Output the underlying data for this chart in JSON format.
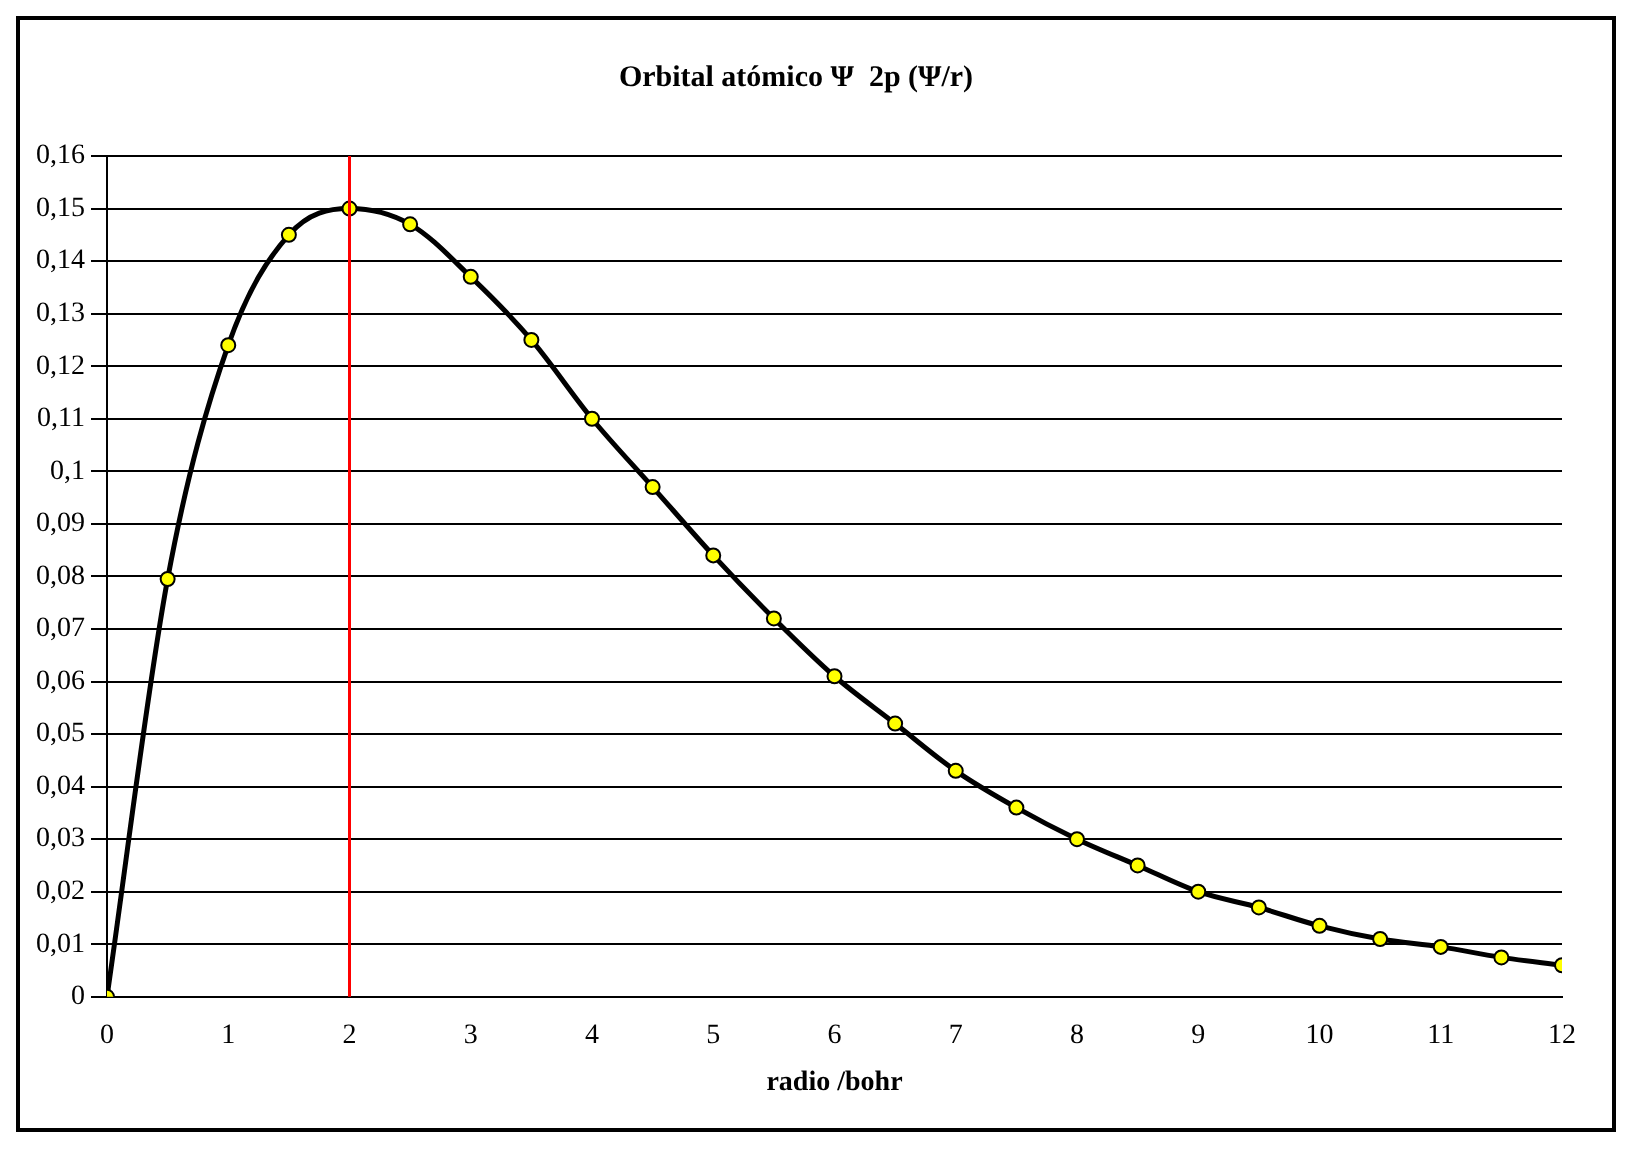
{
  "chart_data": {
    "type": "line",
    "title": "Orbital atómico Ψ  2p (Ψ/r)",
    "xlabel": "radio /bohr",
    "x": [
      0,
      0.5,
      1,
      1.5,
      2,
      2.5,
      3,
      3.5,
      4,
      4.5,
      5,
      5.5,
      6,
      6.5,
      7,
      7.5,
      8,
      8.5,
      9,
      9.5,
      10,
      10.5,
      11,
      11.5,
      12
    ],
    "series": [
      {
        "color": "#000000",
        "values": [
          0,
          0.0795,
          0.124,
          0.145,
          0.15,
          0.147,
          0.137,
          0.125,
          0.11,
          0.097,
          0.084,
          0.072,
          0.061,
          0.052,
          0.043,
          0.036,
          0.03,
          0.025,
          0.02,
          0.017,
          0.0135,
          0.011,
          0.0095,
          0.0075,
          0.006
        ]
      }
    ],
    "xlim": [
      0,
      12
    ],
    "xticks": [
      0,
      1,
      2,
      3,
      4,
      5,
      6,
      7,
      8,
      9,
      10,
      11,
      12
    ],
    "ylim": [
      0,
      0.16
    ],
    "yticks": [
      0,
      {
        "value": 0.01,
        "label": "0,01"
      },
      {
        "value": 0.02,
        "label": "0,02"
      },
      {
        "value": 0.03,
        "label": "0,03"
      },
      {
        "value": 0.04,
        "label": "0,04"
      },
      {
        "value": 0.05,
        "label": "0,05"
      },
      {
        "value": 0.06,
        "label": "0,06"
      },
      {
        "value": 0.07,
        "label": "0,07"
      },
      {
        "value": 0.08,
        "label": "0,08"
      },
      {
        "value": 0.09,
        "label": "0,09"
      },
      {
        "value": 0.1,
        "label": "0,1"
      },
      {
        "value": 0.11,
        "label": "0,11"
      },
      {
        "value": 0.12,
        "label": "0,12"
      },
      {
        "value": 0.13,
        "label": "0,13"
      },
      {
        "value": 0.14,
        "label": "0,14"
      },
      {
        "value": 0.15,
        "label": "0,15"
      },
      {
        "value": 0.16,
        "label": "0,16"
      }
    ],
    "ref_lines": [
      {
        "axis": "x",
        "value": 2,
        "color": "#ff0000"
      }
    ],
    "grid": "y",
    "legend": false,
    "marker": "circle",
    "line_style": "solid"
  }
}
